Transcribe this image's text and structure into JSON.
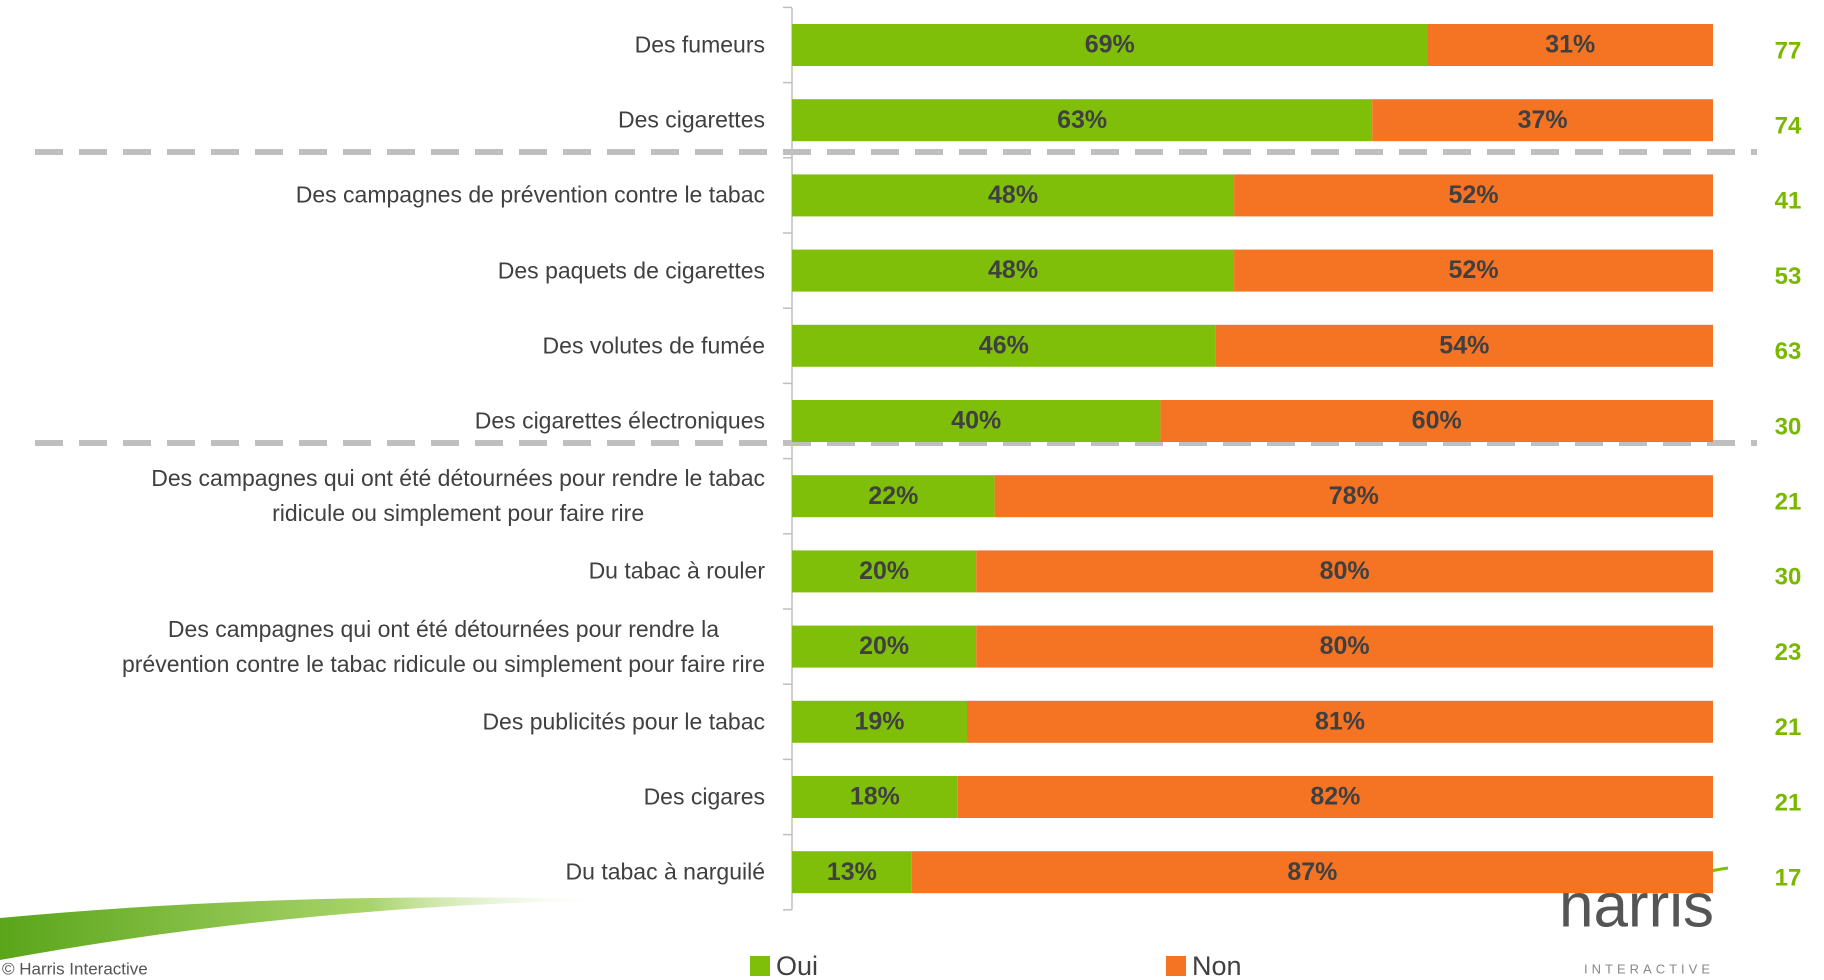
{
  "chart_data": {
    "type": "stacked-bar-horizontal",
    "categories": [
      "Des fumeurs",
      "Des cigarettes",
      "Des campagnes de prévention contre le tabac",
      "Des paquets de cigarettes",
      "Des volutes de fumée",
      "Des cigarettes électroniques",
      "Des campagnes qui ont été détournées pour rendre le tabac\nridicule ou simplement pour faire rire",
      "Du tabac à rouler",
      "Des campagnes qui ont été détournées pour rendre la\nprévention contre le tabac ridicule ou simplement pour faire rire",
      "Des publicités pour le tabac",
      "Des cigares",
      "Du tabac à narguilé"
    ],
    "series": [
      {
        "name": "Oui",
        "color": "#7fbf0a",
        "values": [
          69,
          63,
          48,
          48,
          46,
          40,
          22,
          20,
          20,
          19,
          18,
          13
        ],
        "value_labels": [
          "69%",
          "63%",
          "48%",
          "48%",
          "46%",
          "40%",
          "22%",
          "20%",
          "20%",
          "19%",
          "18%",
          "13%"
        ]
      },
      {
        "name": "Non",
        "color": "#f47424",
        "values": [
          31,
          37,
          52,
          52,
          54,
          60,
          78,
          80,
          80,
          81,
          82,
          87
        ],
        "value_labels": [
          "31%",
          "37%",
          "52%",
          "52%",
          "54%",
          "60%",
          "78%",
          "80%",
          "80%",
          "81%",
          "82%",
          "87%"
        ]
      }
    ],
    "right_values": [
      77,
      74,
      41,
      53,
      63,
      30,
      21,
      30,
      23,
      21,
      21,
      17
    ],
    "right_values_color": "#7ab800",
    "xlim": [
      0,
      100
    ],
    "legend": "bottom"
  },
  "footer": "© Harris Interactive",
  "logo": {
    "name": "harris",
    "tagline": "INTERACTIVE"
  }
}
